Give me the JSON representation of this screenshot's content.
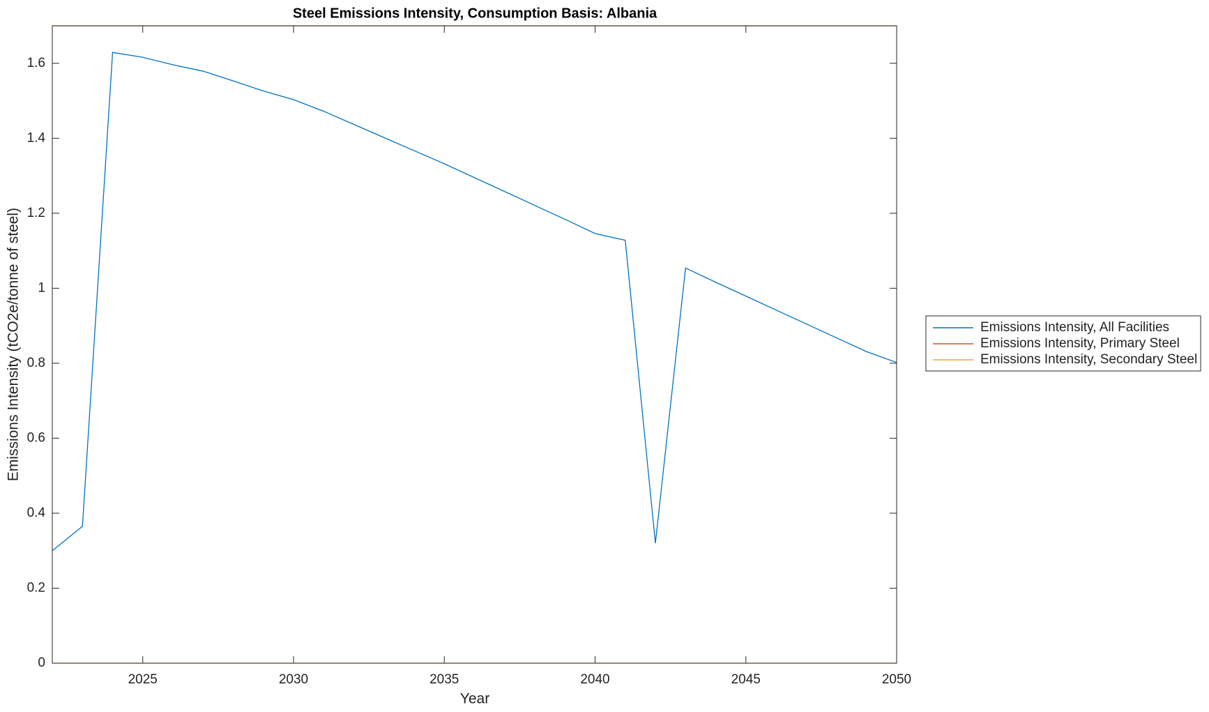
{
  "chart_data": {
    "type": "line",
    "title": "Steel Emissions Intensity, Consumption Basis: Albania",
    "x_label": "Year",
    "y_label": "Emissions Intensity (tCO2e/tonne of steel)",
    "x": [
      2022,
      2023,
      2024,
      2025,
      2026,
      2027,
      2028,
      2029,
      2030,
      2031,
      2032,
      2033,
      2034,
      2035,
      2036,
      2037,
      2038,
      2039,
      2040,
      2041,
      2042,
      2043,
      2044,
      2045,
      2046,
      2047,
      2048,
      2049,
      2050
    ],
    "series": [
      {
        "name": "Emissions Intensity, All Facilities",
        "color": "#0072bd",
        "values": [
          0.3,
          0.365,
          1.629,
          1.616,
          1.596,
          1.579,
          1.553,
          1.526,
          1.503,
          1.472,
          1.437,
          1.402,
          1.367,
          1.332,
          1.295,
          1.258,
          1.221,
          1.184,
          1.146,
          1.128,
          0.32,
          1.054,
          1.016,
          0.979,
          0.942,
          0.905,
          0.868,
          0.831,
          0.802
        ]
      },
      {
        "name": "Emissions Intensity, Primary Steel",
        "color": "#d95319",
        "values": [
          1.7,
          1.7,
          1.7,
          1.7,
          1.7,
          1.7,
          1.7,
          1.7,
          1.7,
          1.7,
          1.7,
          1.7,
          1.7,
          1.7,
          1.7,
          1.7,
          1.7,
          1.7,
          1.7,
          1.7,
          1.7,
          1.7,
          1.7,
          1.7,
          1.7,
          1.7,
          1.7,
          1.7,
          1.7
        ]
      },
      {
        "name": "Emissions Intensity, Secondary Steel",
        "color": "#edb120",
        "values": [
          0,
          0,
          0,
          0,
          0,
          0,
          0,
          0,
          0,
          0,
          0,
          0,
          0,
          0,
          0,
          0,
          0,
          0,
          0,
          0,
          0,
          0,
          0,
          0,
          0,
          0,
          0,
          0,
          0
        ]
      }
    ],
    "xlim": [
      2022,
      2050
    ],
    "xticks": [
      2025,
      2030,
      2035,
      2040,
      2045,
      2050
    ],
    "ylim": [
      0,
      1.7
    ],
    "yticks": [
      0,
      0.2,
      0.4,
      0.6,
      0.8,
      1,
      1.2,
      1.4,
      1.6
    ],
    "legend": "outside-right"
  }
}
